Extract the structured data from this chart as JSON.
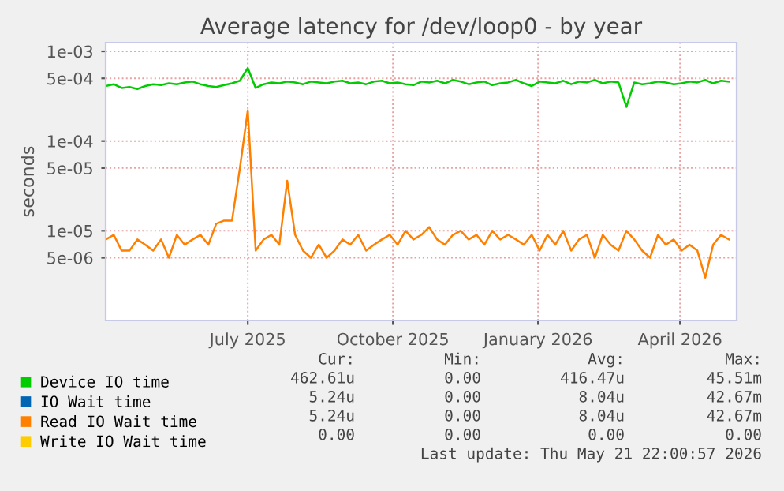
{
  "chart_data": {
    "type": "line",
    "title": "Average latency for /dev/loop0 - by year",
    "ylabel": "seconds",
    "log": "y",
    "grid": true,
    "legend": "bottom",
    "marker": "none",
    "line_style": "solid",
    "xlim": [
      "2025-04-16T22:00",
      "2026-05-21T22:00"
    ],
    "xticks": [
      {
        "value": "2025-07-16",
        "label": "July 2025"
      },
      {
        "value": "2025-10-16",
        "label": "October 2025"
      },
      {
        "value": "2026-01-16",
        "label": "January 2026"
      },
      {
        "value": "2026-04-16",
        "label": "April 2026"
      }
    ],
    "ylim": [
      1e-06,
      0.00125
    ],
    "yticks": [
      {
        "value": 5e-06,
        "label": "5e-06"
      },
      {
        "value": 1e-05,
        "label": "1e-05"
      },
      {
        "value": 5e-05,
        "label": "5e-05"
      },
      {
        "value": 0.0001,
        "label": "1e-04"
      },
      {
        "value": 0.0005,
        "label": "5e-04"
      },
      {
        "value": 0.001,
        "label": "1e-03"
      }
    ],
    "x": [
      "2025-04-17",
      "2025-04-22",
      "2025-04-27",
      "2025-05-02",
      "2025-05-07",
      "2025-05-12",
      "2025-05-17",
      "2025-05-22",
      "2025-05-27",
      "2025-06-01",
      "2025-06-06",
      "2025-06-11",
      "2025-06-16",
      "2025-06-21",
      "2025-06-26",
      "2025-07-01",
      "2025-07-06",
      "2025-07-11",
      "2025-07-16",
      "2025-07-21",
      "2025-07-26",
      "2025-07-31",
      "2025-08-05",
      "2025-08-10",
      "2025-08-15",
      "2025-08-20",
      "2025-08-25",
      "2025-08-30",
      "2025-09-04",
      "2025-09-09",
      "2025-09-14",
      "2025-09-19",
      "2025-09-24",
      "2025-09-29",
      "2025-10-04",
      "2025-10-09",
      "2025-10-14",
      "2025-10-19",
      "2025-10-24",
      "2025-10-29",
      "2025-11-03",
      "2025-11-08",
      "2025-11-13",
      "2025-11-18",
      "2025-11-23",
      "2025-11-28",
      "2025-12-03",
      "2025-12-08",
      "2025-12-13",
      "2025-12-18",
      "2025-12-23",
      "2025-12-28",
      "2026-01-02",
      "2026-01-07",
      "2026-01-12",
      "2026-01-17",
      "2026-01-22",
      "2026-01-27",
      "2026-02-01",
      "2026-02-06",
      "2026-02-11",
      "2026-02-16",
      "2026-02-21",
      "2026-02-26",
      "2026-03-03",
      "2026-03-08",
      "2026-03-13",
      "2026-03-18",
      "2026-03-23",
      "2026-03-28",
      "2026-04-02",
      "2026-04-07",
      "2026-04-12",
      "2026-04-17",
      "2026-04-22",
      "2026-04-27",
      "2026-05-02",
      "2026-05-07",
      "2026-05-12",
      "2026-05-17"
    ],
    "series": [
      {
        "name": "Device IO time",
        "color": "#00cc00",
        "values": [
          0.00041,
          0.00043,
          0.00039,
          0.0004,
          0.00038,
          0.00041,
          0.00043,
          0.00042,
          0.00044,
          0.00043,
          0.00045,
          0.00046,
          0.00043,
          0.00041,
          0.0004,
          0.00042,
          0.00044,
          0.00047,
          0.00065,
          0.00039,
          0.00043,
          0.00045,
          0.00044,
          0.00046,
          0.00045,
          0.00043,
          0.00046,
          0.00045,
          0.00044,
          0.00046,
          0.00047,
          0.00044,
          0.00045,
          0.00043,
          0.00046,
          0.00047,
          0.00044,
          0.00045,
          0.00043,
          0.00042,
          0.00046,
          0.00045,
          0.00047,
          0.00044,
          0.00048,
          0.00046,
          0.00043,
          0.00045,
          0.00046,
          0.00042,
          0.00044,
          0.00045,
          0.00048,
          0.00044,
          0.00041,
          0.00046,
          0.00045,
          0.00044,
          0.00047,
          0.00043,
          0.00046,
          0.00045,
          0.00048,
          0.00044,
          0.00046,
          0.00045,
          0.00024,
          0.00045,
          0.00043,
          0.00044,
          0.00046,
          0.00045,
          0.00043,
          0.00044,
          0.00046,
          0.00045,
          0.00048,
          0.00044,
          0.00047,
          0.00046
        ]
      },
      {
        "name": "IO Wait time",
        "color": "#0066b3",
        "values": [
          null,
          null,
          null,
          null,
          null,
          null,
          null,
          null,
          null,
          null,
          null,
          null,
          null,
          null,
          null,
          null,
          null,
          null,
          null,
          null,
          null,
          null,
          null,
          null,
          null,
          null,
          null,
          null,
          null,
          null,
          null,
          null,
          null,
          null,
          null,
          null,
          null,
          null,
          null,
          null,
          null,
          null,
          null,
          null,
          null,
          null,
          null,
          null,
          null,
          null,
          null,
          null,
          null,
          null,
          null,
          null,
          null,
          null,
          null,
          null,
          null,
          null,
          null,
          null,
          null,
          null,
          null,
          null,
          null,
          null,
          null,
          null,
          null,
          null,
          null,
          null,
          null,
          null,
          null,
          null
        ]
      },
      {
        "name": "Read IO Wait time",
        "color": "#ff8000",
        "values": [
          8e-06,
          9e-06,
          6e-06,
          6e-06,
          8e-06,
          7e-06,
          6e-06,
          8e-06,
          5e-06,
          9e-06,
          7e-06,
          8e-06,
          9e-06,
          7e-06,
          1.2e-05,
          1.3e-05,
          1.3e-05,
          5e-05,
          0.00022,
          6e-06,
          8e-06,
          9e-06,
          7e-06,
          3.6e-05,
          9e-06,
          6e-06,
          5e-06,
          7e-06,
          5e-06,
          6e-06,
          8e-06,
          7e-06,
          9e-06,
          6e-06,
          7e-06,
          8e-06,
          9e-06,
          7e-06,
          1e-05,
          8e-06,
          9e-06,
          1.1e-05,
          8e-06,
          7e-06,
          9e-06,
          1e-05,
          8e-06,
          9e-06,
          7e-06,
          1e-05,
          8e-06,
          9e-06,
          8e-06,
          7e-06,
          9e-06,
          6e-06,
          9e-06,
          7e-06,
          1e-05,
          6e-06,
          8e-06,
          9e-06,
          5e-06,
          9e-06,
          7e-06,
          6e-06,
          1e-05,
          8e-06,
          6e-06,
          5e-06,
          9e-06,
          7e-06,
          8e-06,
          6e-06,
          7e-06,
          6e-06,
          3e-06,
          7e-06,
          9e-06,
          8e-06
        ]
      },
      {
        "name": "Write IO Wait time",
        "color": "#ffcc00",
        "values": [
          null,
          null,
          null,
          null,
          null,
          null,
          null,
          null,
          null,
          null,
          null,
          null,
          null,
          null,
          null,
          null,
          null,
          null,
          null,
          null,
          null,
          null,
          null,
          null,
          null,
          null,
          null,
          null,
          null,
          null,
          null,
          null,
          null,
          null,
          null,
          null,
          null,
          null,
          null,
          null,
          null,
          null,
          null,
          null,
          null,
          null,
          null,
          null,
          null,
          null,
          null,
          null,
          null,
          null,
          null,
          null,
          null,
          null,
          null,
          null,
          null,
          null,
          null,
          null,
          null,
          null,
          null,
          null,
          null,
          null,
          null,
          null,
          null,
          null,
          null,
          null,
          null,
          null,
          null,
          null
        ]
      }
    ],
    "annotations": [
      "Cur:",
      "Min:",
      "Avg:",
      "Max:",
      "462.61u",
      "0.00",
      "416.47u",
      "45.51m",
      "5.24u",
      "0.00",
      "8.04u",
      "42.67m",
      "5.24u",
      "0.00",
      "8.04u",
      "42.67m",
      "0.00",
      "0.00",
      "0.00",
      "0.00",
      "Last update: Thu May 21 22:00:57 2026"
    ]
  }
}
